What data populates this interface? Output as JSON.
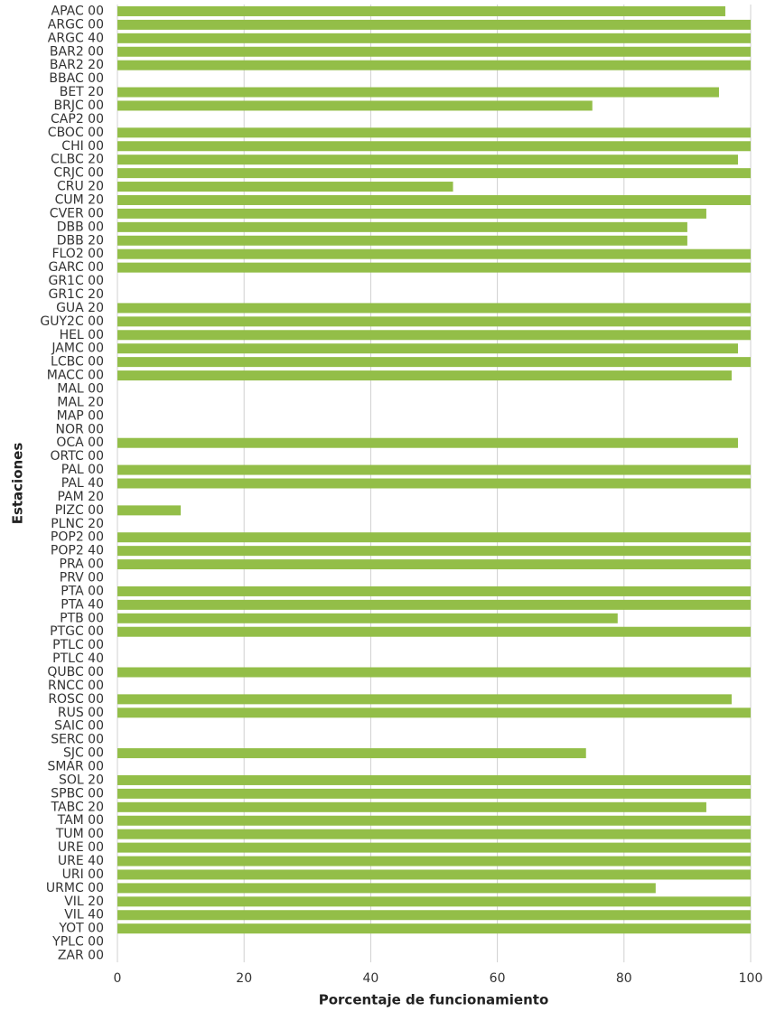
{
  "chart_data": {
    "type": "barh",
    "xlabel": "Porcentaje de funcionamiento",
    "ylabel": "Estaciones",
    "categories": [
      "APAC 00",
      "ARGC 00",
      "ARGC 40",
      "BAR2 00",
      "BAR2 20",
      "BBAC 00",
      "BET 20",
      "BRJC 00",
      "CAP2 00",
      "CBOC 00",
      "CHI 00",
      "CLBC 20",
      "CRJC 00",
      "CRU 20",
      "CUM 20",
      "CVER 00",
      "DBB 00",
      "DBB 20",
      "FLO2 00",
      "GARC 00",
      "GR1C 00",
      "GR1C 20",
      "GUA 20",
      "GUY2C 00",
      "HEL 00",
      "JAMC 00",
      "LCBC 00",
      "MACC 00",
      "MAL 00",
      "MAL 20",
      "MAP 00",
      "NOR 00",
      "OCA 00",
      "ORTC 00",
      "PAL 00",
      "PAL 40",
      "PAM 20",
      "PIZC 00",
      "PLNC 20",
      "POP2 00",
      "POP2 40",
      "PRA 00",
      "PRV 00",
      "PTA 00",
      "PTA 40",
      "PTB 00",
      "PTGC 00",
      "PTLC 00",
      "PTLC 40",
      "QUBC 00",
      "RNCC 00",
      "ROSC 00",
      "RUS 00",
      "SAIC 00",
      "SERC 00",
      "SJC 00",
      "SMAR 00",
      "SOL 20",
      "SPBC 00",
      "TABC 20",
      "TAM 00",
      "TUM 00",
      "URE 00",
      "URE 40",
      "URI 00",
      "URMC 00",
      "VIL 20",
      "VIL 40",
      "YOT 00",
      "YPLC 00",
      "ZAR 00"
    ],
    "values": [
      96,
      100,
      100,
      100,
      100,
      0,
      95,
      75,
      0,
      100,
      100,
      98,
      100,
      53,
      100,
      93,
      90,
      90,
      100,
      100,
      0,
      0,
      100,
      100,
      100,
      98,
      100,
      97,
      0,
      0,
      0,
      0,
      98,
      0,
      100,
      100,
      0,
      10,
      0,
      100,
      100,
      100,
      0,
      100,
      100,
      79,
      100,
      0,
      0,
      100,
      0,
      97,
      100,
      0,
      0,
      74,
      0,
      100,
      100,
      93,
      100,
      100,
      100,
      100,
      100,
      85,
      100,
      100,
      100,
      0,
      0
    ],
    "color": "#93be48",
    "xlim": [
      0,
      100
    ],
    "xticks": [
      0,
      20,
      40,
      60,
      80,
      100
    ],
    "grid": true
  }
}
